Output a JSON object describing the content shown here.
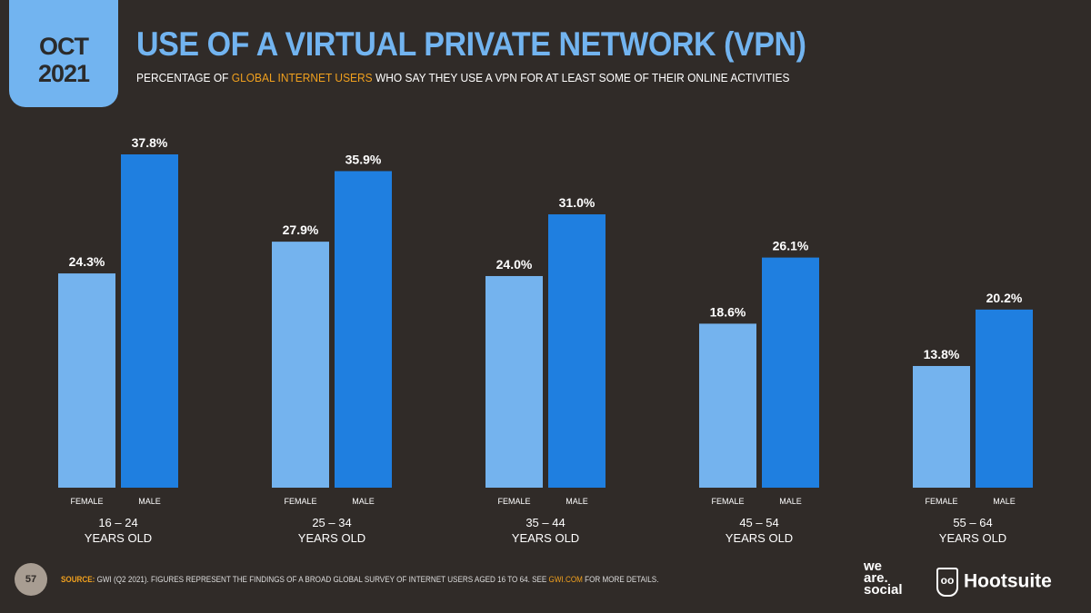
{
  "date_tab": {
    "month": "OCT",
    "year": "2021"
  },
  "header": {
    "title": "USE OF A VIRTUAL PRIVATE NETWORK (VPN)",
    "subtitle_pre": "PERCENTAGE OF ",
    "subtitle_highlight": "GLOBAL INTERNET USERS",
    "subtitle_post": " WHO SAY THEY USE A VPN FOR AT LEAST SOME OF THEIR ONLINE ACTIVITIES"
  },
  "chart_data": {
    "type": "bar",
    "categories": [
      "16 – 24",
      "25 – 34",
      "35 – 44",
      "45 – 54",
      "55 – 64"
    ],
    "category_sublabel": "YEARS OLD",
    "series": [
      {
        "name": "FEMALE",
        "values": [
          24.3,
          27.9,
          24.0,
          18.6,
          13.8
        ],
        "color": "#74b3ee"
      },
      {
        "name": "MALE",
        "values": [
          37.8,
          35.9,
          31.0,
          26.1,
          20.2
        ],
        "color": "#1f7fe0"
      }
    ],
    "ylim": [
      0,
      40
    ],
    "grid": false,
    "value_format": "percent-1dp"
  },
  "footer": {
    "page": "57",
    "source_label": "SOURCE:",
    "source_text": " GWI (Q2 2021). FIGURES REPRESENT THE FINDINGS OF A BROAD GLOBAL SURVEY OF INTERNET USERS AGED 16 TO 64. SEE ",
    "source_link": "GWI.COM",
    "source_end": " FOR MORE DETAILS."
  },
  "logos": {
    "we_are_social": "we are social",
    "hootsuite": "Hootsuite"
  }
}
